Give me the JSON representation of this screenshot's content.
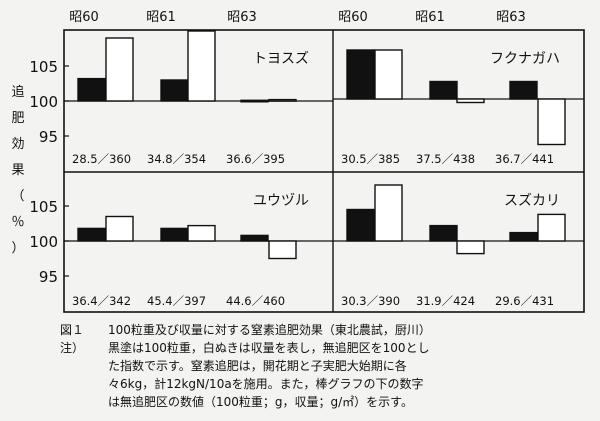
{
  "y_axis_label": [
    "追",
    "肥",
    "効",
    "果",
    "（",
    "％",
    "）"
  ],
  "panels": [
    {
      "title": "トヨスズ",
      "years": [
        "昭60",
        "昭61",
        "昭63"
      ],
      "values": [
        [
          103.2,
          109.0
        ],
        [
          103.0,
          110.0
        ],
        [
          100.1,
          100.2
        ]
      ],
      "labels": [
        "28.5／360",
        "34.8／354",
        "36.6／395"
      ]
    },
    {
      "title": "フクナガハ",
      "years": [
        "昭60",
        "昭61",
        "昭63"
      ],
      "values": [
        [
          107.0,
          107.0
        ],
        [
          102.5,
          99.5
        ],
        [
          102.5,
          93.5
        ]
      ],
      "labels": [
        "30.5／385",
        "37.5／438",
        "36.7／441"
      ]
    },
    {
      "title": "ユウヅル",
      "years": [],
      "values": [
        [
          101.8,
          103.5
        ],
        [
          101.8,
          102.2
        ],
        [
          100.8,
          97.5
        ]
      ],
      "labels": [
        "36.4／342",
        "45.4／397",
        "44.6／460"
      ]
    },
    {
      "title": "スズカリ",
      "years": [],
      "values": [
        [
          104.5,
          108.0
        ],
        [
          102.2,
          98.2
        ],
        [
          101.2,
          103.8
        ]
      ],
      "labels": [
        "30.3／390",
        "31.9／424",
        "29.6／431"
      ]
    }
  ],
  "caption": {
    "lead1": "図１",
    "line1": "100粒重及び収量に対する窒素追肥効果（東北農試，厨川）",
    "lead2": "注）",
    "line2": "黒塗は100粒重，白ぬきは収量を表し，無追肥区を100とし",
    "line3": "た指数で示す。窒素追肥は，開花期と子実肥大始期に各",
    "line4": "々6kg，計12kgN/10aを施用。また，棒グラフの下の数字",
    "line5": "は無追肥区の数値（100粒重；g，収量；g/㎡）を示す。"
  },
  "chart_data": {
    "type": "bar",
    "ylabel": "追肥効果（％）",
    "ylim": [
      91,
      111
    ],
    "ticks": [
      "95",
      "100",
      "105"
    ],
    "baseline": 100,
    "panels": [
      {
        "title": "トヨスズ",
        "categories": [
          "昭60",
          "昭61",
          "昭63"
        ],
        "series": [
          {
            "values": [
              103.2,
              103.0,
              100.1
            ]
          },
          {
            "values": [
              109.0,
              110.0,
              100.2
            ]
          }
        ]
      },
      {
        "title": "フクナガハ",
        "categories": [
          "昭60",
          "昭61",
          "昭63"
        ],
        "series": [
          {
            "values": [
              107.0,
              102.5,
              102.5
            ]
          },
          {
            "values": [
              107.0,
              99.5,
              93.5
            ]
          }
        ]
      },
      {
        "title": "ユウヅル",
        "categories": [
          "昭60",
          "昭61",
          "昭63"
        ],
        "series": [
          {
            "values": [
              101.8,
              101.8,
              100.8
            ]
          },
          {
            "values": [
              103.5,
              102.2,
              97.5
            ]
          }
        ]
      },
      {
        "title": "スズカリ",
        "categories": [
          "昭60",
          "昭61",
          "昭63"
        ],
        "series": [
          {
            "values": [
              104.5,
              102.2,
              101.2
            ]
          },
          {
            "values": [
              108.0,
              98.2,
              103.8
            ]
          }
        ]
      }
    ],
    "colors": {
      "seed_weight": "#111111",
      "yield": "#ffffff"
    }
  }
}
